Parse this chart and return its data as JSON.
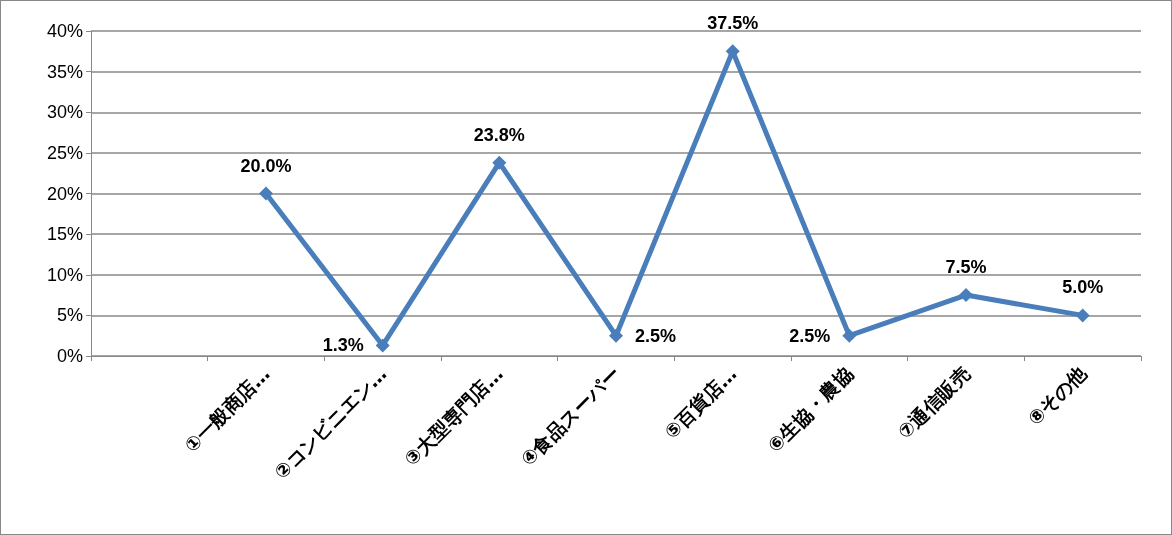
{
  "chart_data": {
    "type": "line",
    "categories": [
      null,
      "①一般商店…",
      "②コンビニエン…",
      "③大型専門店…",
      "④食品スーパー",
      "⑤百貨店…",
      "⑥生協・農協",
      "⑦通信販売",
      "⑧その他"
    ],
    "series": [
      {
        "color": "#4a7ebb",
        "values": [
          null,
          20.0,
          1.3,
          23.8,
          2.5,
          37.5,
          2.5,
          7.5,
          5.0
        ],
        "value_labels": [
          null,
          "20.0%",
          "1.3%",
          "23.8%",
          "2.5%",
          "37.5%",
          "2.5%",
          "7.5%",
          "5.0%"
        ]
      }
    ],
    "ylim": [
      0,
      40
    ],
    "yticks": [
      {
        "value": 0,
        "label": "0%"
      },
      {
        "value": 5,
        "label": "5%"
      },
      {
        "value": 10,
        "label": "10%"
      },
      {
        "value": 15,
        "label": "15%"
      },
      {
        "value": 20,
        "label": "20%"
      },
      {
        "value": 25,
        "label": "25%"
      },
      {
        "value": 30,
        "label": "30%"
      },
      {
        "value": 35,
        "label": "35%"
      },
      {
        "value": 40,
        "label": "40%"
      }
    ],
    "grid": "y",
    "marker": "diamond",
    "line_style": "solid"
  }
}
